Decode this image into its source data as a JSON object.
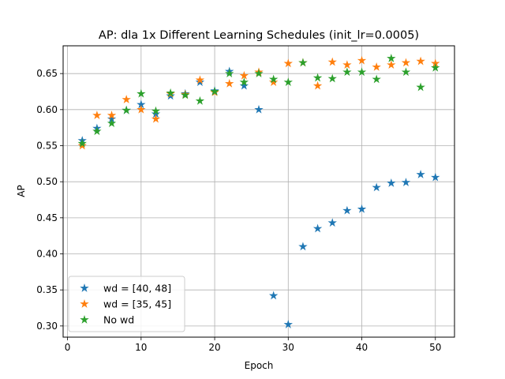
{
  "chart_data": {
    "type": "scatter",
    "title": "AP: dla 1x Different Learning Schedules (init_lr=0.0005)",
    "xlabel": "Epoch",
    "ylabel": "AP",
    "xlim": [
      -0.6,
      52.6
    ],
    "ylim": [
      0.2845,
      0.6885
    ],
    "xticks": [
      0,
      10,
      20,
      30,
      40,
      50
    ],
    "yticks": [
      0.3,
      0.35,
      0.4,
      0.45,
      0.5,
      0.55,
      0.6,
      0.65
    ],
    "xtick_labels": [
      "0",
      "10",
      "20",
      "30",
      "40",
      "50"
    ],
    "ytick_labels": [
      "0.30",
      "0.35",
      "0.40",
      "0.45",
      "0.50",
      "0.55",
      "0.60",
      "0.65"
    ],
    "grid": true,
    "legend_position": "lower-left",
    "marker": "star",
    "series": [
      {
        "name": "wd = [40, 48]",
        "color": "#1f77b4",
        "points": [
          [
            2,
            0.557
          ],
          [
            4,
            0.574
          ],
          [
            6,
            0.587
          ],
          [
            8,
            0.599
          ],
          [
            10,
            0.607
          ],
          [
            12,
            0.594
          ],
          [
            14,
            0.619
          ],
          [
            16,
            0.622
          ],
          [
            18,
            0.638
          ],
          [
            20,
            0.626
          ],
          [
            22,
            0.653
          ],
          [
            24,
            0.633
          ],
          [
            26,
            0.6
          ],
          [
            28,
            0.342
          ],
          [
            30,
            0.302
          ],
          [
            32,
            0.41
          ],
          [
            34,
            0.435
          ],
          [
            36,
            0.443
          ],
          [
            38,
            0.46
          ],
          [
            40,
            0.462
          ],
          [
            42,
            0.492
          ],
          [
            44,
            0.498
          ],
          [
            46,
            0.499
          ],
          [
            48,
            0.51
          ],
          [
            50,
            0.506
          ]
        ]
      },
      {
        "name": "wd = [35, 45]",
        "color": "#ff7f0e",
        "points": [
          [
            2,
            0.55
          ],
          [
            4,
            0.592
          ],
          [
            6,
            0.592
          ],
          [
            8,
            0.614
          ],
          [
            10,
            0.6
          ],
          [
            12,
            0.587
          ],
          [
            14,
            0.622
          ],
          [
            16,
            0.621
          ],
          [
            18,
            0.641
          ],
          [
            20,
            0.624
          ],
          [
            22,
            0.636
          ],
          [
            24,
            0.647
          ],
          [
            26,
            0.652
          ],
          [
            28,
            0.638
          ],
          [
            30,
            0.664
          ],
          [
            32,
            0.665
          ],
          [
            34,
            0.633
          ],
          [
            36,
            0.666
          ],
          [
            38,
            0.662
          ],
          [
            40,
            0.668
          ],
          [
            42,
            0.659
          ],
          [
            44,
            0.662
          ],
          [
            46,
            0.665
          ],
          [
            48,
            0.667
          ],
          [
            50,
            0.664
          ]
        ]
      },
      {
        "name": "No wd",
        "color": "#2ca02c",
        "points": [
          [
            2,
            0.553
          ],
          [
            4,
            0.57
          ],
          [
            6,
            0.581
          ],
          [
            8,
            0.599
          ],
          [
            10,
            0.622
          ],
          [
            12,
            0.598
          ],
          [
            14,
            0.623
          ],
          [
            16,
            0.62
          ],
          [
            18,
            0.612
          ],
          [
            20,
            0.625
          ],
          [
            22,
            0.65
          ],
          [
            24,
            0.638
          ],
          [
            26,
            0.65
          ],
          [
            28,
            0.642
          ],
          [
            30,
            0.638
          ],
          [
            32,
            0.665
          ],
          [
            34,
            0.644
          ],
          [
            36,
            0.643
          ],
          [
            38,
            0.652
          ],
          [
            40,
            0.652
          ],
          [
            42,
            0.642
          ],
          [
            44,
            0.671
          ],
          [
            46,
            0.652
          ],
          [
            48,
            0.631
          ],
          [
            50,
            0.658
          ]
        ]
      }
    ]
  }
}
